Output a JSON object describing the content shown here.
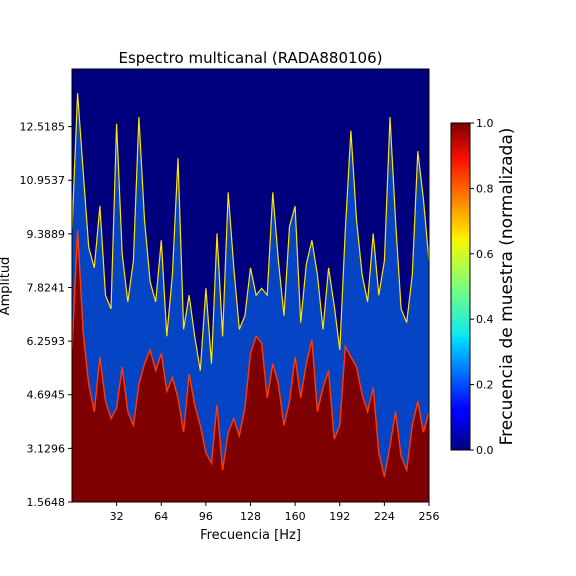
{
  "chart_data": {
    "type": "heatmap",
    "title": "Espectro multicanal (RADA880106)",
    "xlabel": "Frecuencia [Hz]",
    "ylabel": "Amplitud",
    "xlim": [
      0,
      256
    ],
    "ylim": [
      1.5648,
      14.2
    ],
    "x_ticks": [
      32,
      64,
      96,
      128,
      160,
      192,
      224,
      256
    ],
    "x_tick_labels": [
      "32",
      "64",
      "96",
      "128",
      "160",
      "192",
      "224",
      "256"
    ],
    "y_ticks": [
      1.5648,
      3.1296,
      4.6945,
      6.2593,
      7.8241,
      9.3889,
      10.9537,
      12.5185
    ],
    "y_tick_labels": [
      "1.5648",
      "3.1296",
      "4.6945",
      "6.2593",
      "7.8241",
      "9.3889",
      "10.9537",
      "12.5185"
    ],
    "colormap": "jet",
    "colorbar": {
      "label": "Frecuencia de muestra (normalizada)",
      "range": [
        0.0,
        1.0
      ],
      "ticks": [
        0.0,
        0.2,
        0.4,
        0.6,
        0.8,
        1.0
      ],
      "tick_labels": [
        "0.0",
        "0.2",
        "0.4",
        "0.6",
        "0.8",
        "1.0"
      ]
    },
    "spectrum_profile": {
      "frequencies": [
        0,
        4,
        8,
        12,
        16,
        20,
        24,
        28,
        32,
        36,
        40,
        44,
        48,
        52,
        56,
        60,
        64,
        68,
        72,
        76,
        80,
        84,
        88,
        92,
        96,
        100,
        104,
        108,
        112,
        116,
        120,
        124,
        128,
        132,
        136,
        140,
        144,
        148,
        152,
        156,
        160,
        164,
        168,
        172,
        176,
        180,
        184,
        188,
        192,
        196,
        200,
        204,
        208,
        212,
        216,
        220,
        224,
        228,
        232,
        236,
        240,
        244,
        248,
        252,
        256
      ],
      "saturation_amplitude": [
        6.0,
        9.5,
        6.5,
        5.0,
        4.2,
        5.8,
        4.5,
        4.0,
        4.3,
        5.5,
        4.2,
        3.8,
        5.0,
        5.6,
        6.0,
        5.4,
        5.9,
        4.8,
        5.2,
        4.6,
        3.6,
        5.3,
        4.4,
        3.8,
        3.0,
        2.7,
        4.4,
        2.5,
        3.6,
        4.0,
        3.5,
        4.3,
        5.9,
        6.4,
        6.2,
        4.6,
        5.6,
        5.0,
        3.8,
        4.5,
        5.8,
        4.6,
        5.6,
        6.3,
        4.2,
        4.9,
        5.4,
        3.4,
        3.8,
        6.1,
        5.8,
        5.5,
        4.7,
        4.2,
        4.9,
        3.0,
        2.3,
        3.2,
        4.2,
        2.9,
        2.5,
        3.8,
        4.5,
        3.6,
        4.2
      ],
      "peak_amplitude": [
        9.5,
        13.5,
        11.2,
        9.0,
        8.4,
        10.2,
        7.6,
        7.2,
        12.6,
        8.8,
        7.4,
        8.6,
        12.8,
        9.8,
        8.0,
        7.4,
        9.2,
        6.4,
        8.2,
        11.6,
        6.6,
        7.6,
        6.4,
        5.4,
        7.8,
        5.6,
        9.4,
        6.4,
        10.6,
        8.4,
        6.6,
        7.0,
        8.4,
        7.6,
        7.8,
        7.6,
        10.6,
        8.6,
        7.0,
        9.6,
        10.2,
        6.8,
        8.5,
        9.2,
        8.2,
        6.6,
        8.4,
        7.3,
        6.0,
        9.5,
        12.4,
        9.8,
        8.2,
        7.4,
        9.4,
        7.6,
        8.6,
        12.8,
        9.8,
        7.2,
        6.8,
        8.2,
        11.8,
        10.4,
        8.6
      ]
    }
  }
}
